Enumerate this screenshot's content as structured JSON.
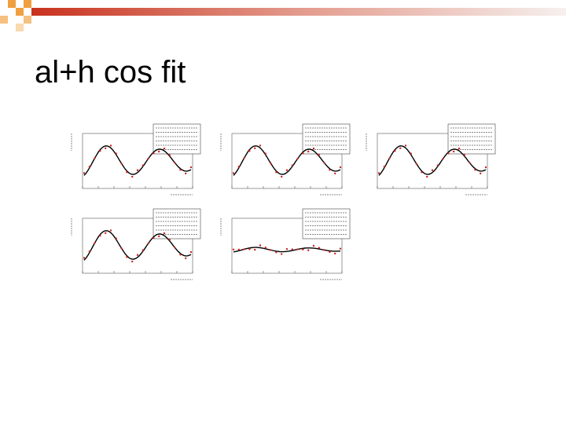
{
  "title": "al+h cos fit"
}
